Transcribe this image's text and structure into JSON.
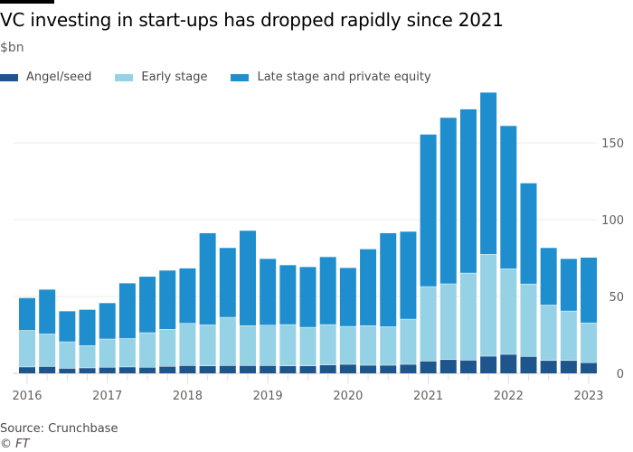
{
  "chart_data": {
    "type": "bar",
    "stacked": true,
    "title": "VC investing in start-ups has dropped rapidly since 2021",
    "subtitle": "$bn",
    "xlabel": "",
    "ylabel": "$bn",
    "ylim": [
      0,
      185
    ],
    "yticks": [
      0,
      50,
      100,
      150
    ],
    "grid": true,
    "legend_position": "top-left",
    "categories": [
      "2016 Q1",
      "2016 Q2",
      "2016 Q3",
      "2016 Q4",
      "2017 Q1",
      "2017 Q2",
      "2017 Q3",
      "2017 Q4",
      "2018 Q1",
      "2018 Q2",
      "2018 Q3",
      "2018 Q4",
      "2019 Q1",
      "2019 Q2",
      "2019 Q3",
      "2019 Q4",
      "2020 Q1",
      "2020 Q2",
      "2020 Q3",
      "2020 Q4",
      "2021 Q1",
      "2021 Q2",
      "2021 Q3",
      "2021 Q4",
      "2022 Q1",
      "2022 Q2",
      "2022 Q3",
      "2022 Q4",
      "2023 Q1"
    ],
    "xtick_labels": [
      {
        "index": 0,
        "label": "2016"
      },
      {
        "index": 4,
        "label": "2017"
      },
      {
        "index": 8,
        "label": "2018"
      },
      {
        "index": 12,
        "label": "2019"
      },
      {
        "index": 16,
        "label": "2020"
      },
      {
        "index": 20,
        "label": "2021"
      },
      {
        "index": 24,
        "label": "2022"
      },
      {
        "index": 28,
        "label": "2023"
      }
    ],
    "series": [
      {
        "name": "Angel/seed",
        "color": "#1f558d",
        "values": [
          4,
          4.3,
          3.1,
          3.4,
          3.8,
          4,
          3.8,
          4.4,
          4.9,
          4.7,
          4.9,
          4.9,
          4.9,
          4.7,
          4.7,
          5.3,
          5.7,
          5.1,
          5.1,
          5.7,
          7.8,
          8.8,
          8.4,
          11,
          12.2,
          10.8,
          8.2,
          8.2,
          6.8
        ]
      },
      {
        "name": "Early stage",
        "color": "#96d2e6",
        "values": [
          23.8,
          21.2,
          17.3,
          14.5,
          18.4,
          18.5,
          22.5,
          24.1,
          27.5,
          26.7,
          31.4,
          26,
          26.3,
          26.9,
          25.1,
          26.3,
          24.7,
          25.8,
          25.1,
          29.4,
          48.5,
          49.3,
          56.7,
          66.3,
          55.7,
          47.2,
          36.1,
          32.2,
          25.9
        ]
      },
      {
        "name": "Late stage and private equity",
        "color": "#1f8ece",
        "values": [
          21.2,
          29,
          20,
          23.5,
          23.5,
          36.1,
          36.6,
          38.4,
          35.9,
          59.8,
          45.3,
          61.9,
          43.3,
          38.8,
          39.4,
          44.1,
          38.2,
          49.9,
          61,
          57.1,
          99.1,
          108.2,
          106.7,
          105.4,
          93.1,
          65.7,
          37.3,
          34.1,
          42.6
        ]
      }
    ]
  },
  "footer": {
    "source": "Source: Crunchbase",
    "copyright": "© FT"
  }
}
